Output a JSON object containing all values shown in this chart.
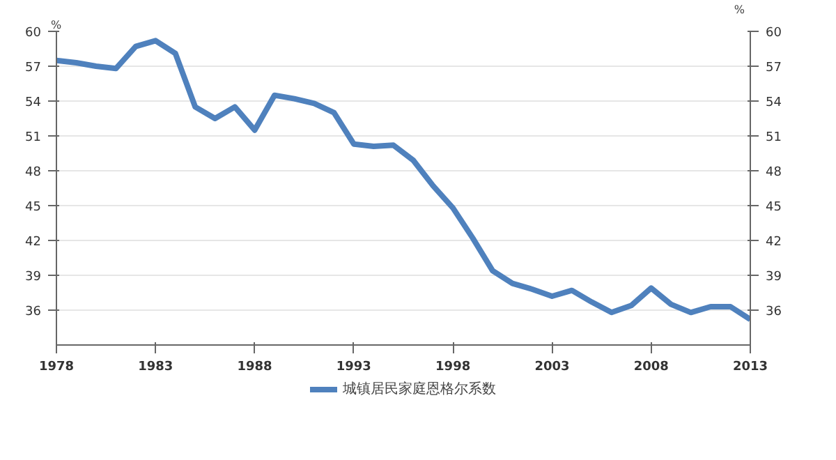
{
  "chart_data": {
    "type": "line",
    "ylabel": "%",
    "y2label": "%",
    "x": [
      1978,
      1979,
      1980,
      1981,
      1982,
      1983,
      1984,
      1985,
      1986,
      1987,
      1988,
      1989,
      1990,
      1991,
      1992,
      1993,
      1994,
      1995,
      1996,
      1997,
      1998,
      1999,
      2000,
      2001,
      2002,
      2003,
      2004,
      2005,
      2006,
      2007,
      2008,
      2009,
      2010,
      2011,
      2012,
      2013
    ],
    "series": [
      {
        "name": "城镇居民家庭恩格尔系数",
        "color": "#4f81bd",
        "values": [
          57.5,
          57.3,
          57.0,
          56.8,
          58.7,
          59.2,
          58.1,
          53.5,
          52.5,
          53.5,
          51.5,
          54.5,
          54.2,
          53.8,
          53.0,
          50.3,
          50.1,
          50.2,
          48.9,
          46.7,
          44.8,
          42.2,
          39.4,
          38.3,
          37.8,
          37.2,
          37.7,
          36.7,
          35.8,
          36.4,
          37.9,
          36.5,
          35.8,
          36.3,
          36.3,
          35.2
        ]
      }
    ],
    "xlim": [
      1978,
      2013
    ],
    "xticks": [
      1978,
      1983,
      1988,
      1993,
      1998,
      2003,
      2008,
      2013
    ],
    "ylim": [
      33,
      60
    ],
    "yticks": [
      36,
      39,
      42,
      45,
      48,
      51,
      54,
      57,
      60
    ],
    "y2lim": [
      33,
      60
    ],
    "y2ticks": [
      36,
      39,
      42,
      45,
      48,
      51,
      54,
      57,
      60
    ],
    "grid": "y",
    "legend": "bottom",
    "marker": "none",
    "line_style": "solid"
  }
}
